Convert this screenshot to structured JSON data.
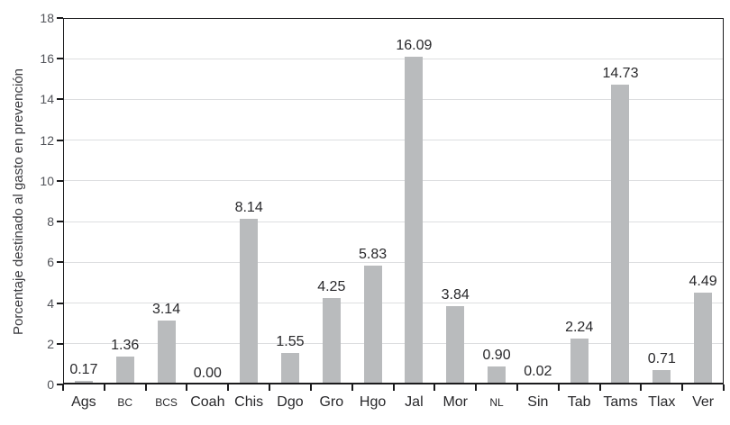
{
  "chart_data": {
    "type": "bar",
    "title": "",
    "xlabel": "",
    "ylabel": "Porcentaje destinado al gasto en prevención",
    "ylim": [
      0,
      18
    ],
    "ytick_step": 2,
    "grid": true,
    "legend_position": "none",
    "categories": [
      "Ags",
      "BC",
      "BCS",
      "Coah",
      "Chis",
      "Dgo",
      "Gro",
      "Hgo",
      "Jal",
      "Mor",
      "NL",
      "Sin",
      "Tab",
      "Tams",
      "Tlax",
      "Ver"
    ],
    "values": [
      0.17,
      1.36,
      3.14,
      0.0,
      8.14,
      1.55,
      4.25,
      5.83,
      16.09,
      3.84,
      0.9,
      0.02,
      2.24,
      14.73,
      0.71,
      4.49
    ],
    "value_labels": [
      "0.17",
      "1.36",
      "3.14",
      "0.00",
      "8.14",
      "1.55",
      "4.25",
      "5.83",
      "16.09",
      "3.84",
      "0.90",
      "0.02",
      "2.24",
      "14.73",
      "0.71",
      "4.49"
    ],
    "small_caps_categories": [
      "BC",
      "BCS",
      "NL"
    ],
    "colors": {
      "bar": "#b9bbbd",
      "gridline": "#dddee0",
      "axis": "#1b1b1d",
      "y_tick_label": "#515359",
      "value_label": "#27272a",
      "x_label": "#27272a",
      "axis_title": "#3c3c40",
      "background": "#ffffff"
    }
  }
}
